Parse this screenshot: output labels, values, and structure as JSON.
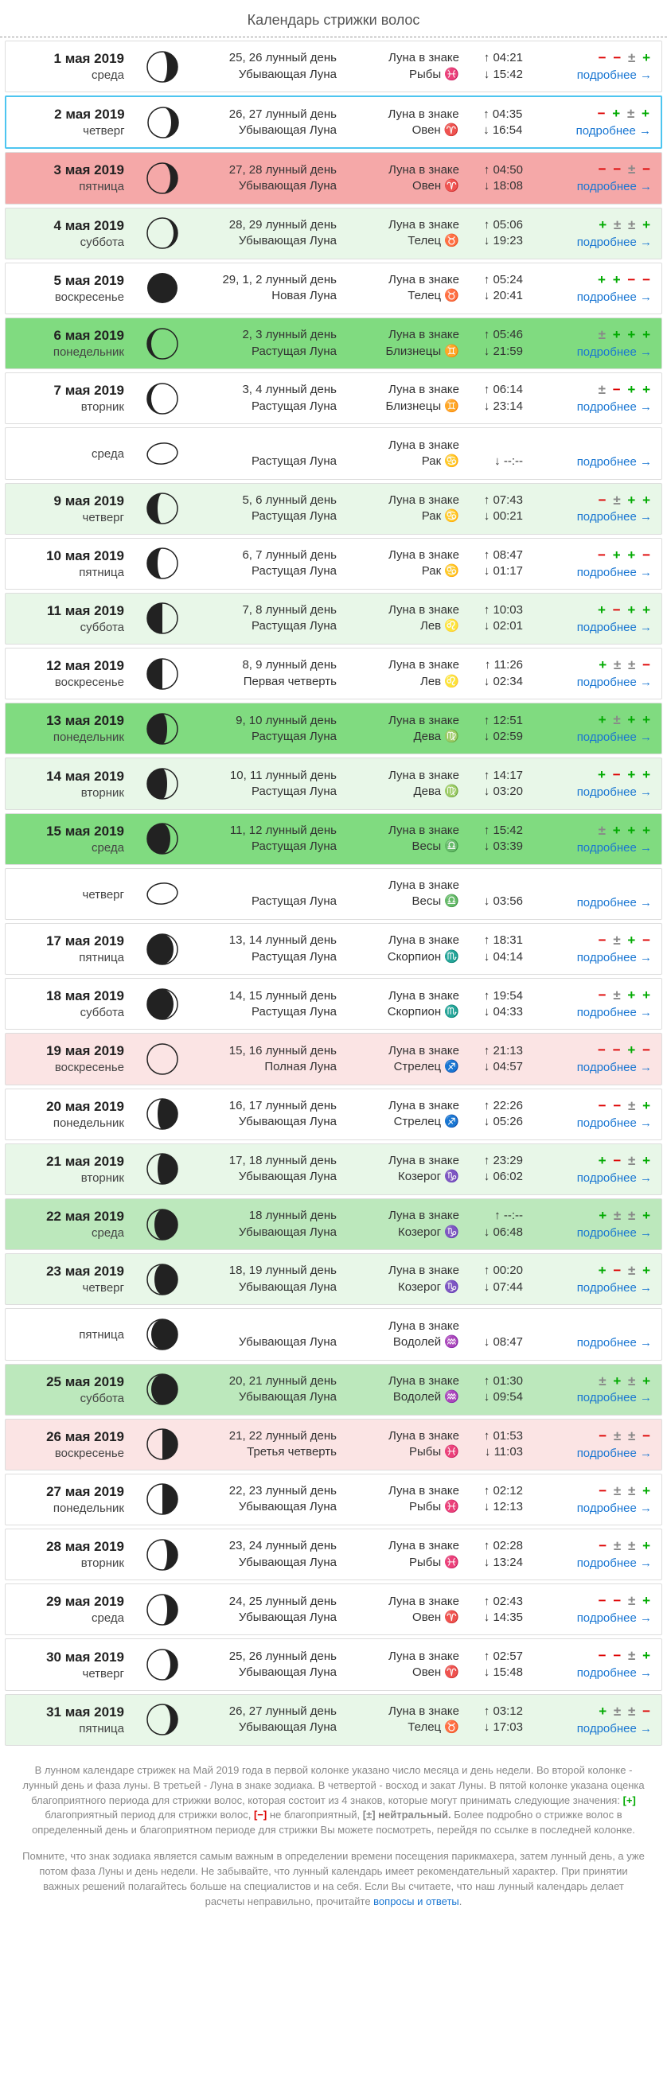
{
  "title": "Календарь стрижки волос",
  "moon_label": "Луна в знаке",
  "details_label": "подробнее →",
  "rows": [
    {
      "date": "1 мая 2019",
      "day": "среда",
      "lunar1": "25, 26 лунный день",
      "lunar2": "Убывающая Луна",
      "sign": "Рыбы ♓",
      "rise": "↑ 04:21",
      "set": "↓ 15:42",
      "rate": [
        "-",
        "-",
        "±",
        "+"
      ],
      "bg": "bg-white",
      "phase": "waning-crescent-3",
      "sel": false
    },
    {
      "date": "2 мая 2019",
      "day": "четверг",
      "lunar1": "26, 27 лунный день",
      "lunar2": "Убывающая Луна",
      "sign": "Овен ♈",
      "rise": "↑ 04:35",
      "set": "↓ 16:54",
      "rate": [
        "-",
        "+",
        "±",
        "+"
      ],
      "bg": "bg-white",
      "phase": "waning-crescent-2",
      "sel": true
    },
    {
      "date": "3 мая 2019",
      "day": "пятница",
      "lunar1": "27, 28 лунный день",
      "lunar2": "Убывающая Луна",
      "sign": "Овен ♈",
      "rise": "↑ 04:50",
      "set": "↓ 18:08",
      "rate": [
        "-",
        "-",
        "±",
        "-"
      ],
      "bg": "bg-red",
      "phase": "waning-crescent-2",
      "sel": false
    },
    {
      "date": "4 мая 2019",
      "day": "суббота",
      "lunar1": "28, 29 лунный день",
      "lunar2": "Убывающая Луна",
      "sign": "Телец ♉",
      "rise": "↑ 05:06",
      "set": "↓ 19:23",
      "rate": [
        "+",
        "±",
        "±",
        "+"
      ],
      "bg": "bg-lgreen",
      "phase": "waning-crescent-1",
      "sel": false
    },
    {
      "date": "5 мая 2019",
      "day": "воскресенье",
      "lunar1": "29, 1, 2 лунный день",
      "lunar2": "Новая Луна",
      "sign": "Телец ♉",
      "rise": "↑ 05:24",
      "set": "↓ 20:41",
      "rate": [
        "+",
        "+",
        "-",
        "-"
      ],
      "bg": "bg-white",
      "phase": "new",
      "sel": false
    },
    {
      "date": "6 мая 2019",
      "day": "понедельник",
      "lunar1": "2, 3 лунный день",
      "lunar2": "Растущая Луна",
      "sign": "Близнецы ♊",
      "rise": "↑ 05:46",
      "set": "↓ 21:59",
      "rate": [
        "±",
        "+",
        "+",
        "+"
      ],
      "bg": "bg-dgreen",
      "phase": "waxing-crescent-1",
      "sel": false
    },
    {
      "date": "7 мая 2019",
      "day": "вторник",
      "lunar1": "3, 4 лунный день",
      "lunar2": "Растущая Луна",
      "sign": "Близнецы ♊",
      "rise": "↑ 06:14",
      "set": "↓ 23:14",
      "rate": [
        "±",
        "-",
        "+",
        "+"
      ],
      "bg": "bg-white",
      "phase": "waxing-crescent-1",
      "sel": false
    },
    {
      "date": "",
      "day": "среда",
      "lunar1": "",
      "lunar2": "Растущая Луна",
      "sign": "Рак ♋",
      "rise": "",
      "set": "↓ --:--",
      "rate": [],
      "bg": "bg-white",
      "phase": "lemon",
      "sel": false
    },
    {
      "date": "9 мая 2019",
      "day": "четверг",
      "lunar1": "5, 6 лунный день",
      "lunar2": "Растущая Луна",
      "sign": "Рак ♋",
      "rise": "↑ 07:43",
      "set": "↓ 00:21",
      "rate": [
        "-",
        "±",
        "+",
        "+"
      ],
      "bg": "bg-lgreen",
      "phase": "waxing-crescent-3",
      "sel": false
    },
    {
      "date": "10 мая 2019",
      "day": "пятница",
      "lunar1": "6, 7 лунный день",
      "lunar2": "Растущая Луна",
      "sign": "Рак ♋",
      "rise": "↑ 08:47",
      "set": "↓ 01:17",
      "rate": [
        "-",
        "+",
        "+",
        "-"
      ],
      "bg": "bg-white",
      "phase": "waxing-crescent-3",
      "sel": false
    },
    {
      "date": "11 мая 2019",
      "day": "суббота",
      "lunar1": "7, 8 лунный день",
      "lunar2": "Растущая Луна",
      "sign": "Лев ♌",
      "rise": "↑ 10:03",
      "set": "↓ 02:01",
      "rate": [
        "+",
        "-",
        "+",
        "+"
      ],
      "bg": "bg-lgreen",
      "phase": "first-quarter",
      "sel": false
    },
    {
      "date": "12 мая 2019",
      "day": "воскресенье",
      "lunar1": "8, 9 лунный день",
      "lunar2": "Первая четверть",
      "sign": "Лев ♌",
      "rise": "↑ 11:26",
      "set": "↓ 02:34",
      "rate": [
        "+",
        "±",
        "±",
        "-"
      ],
      "bg": "bg-white",
      "phase": "first-quarter",
      "sel": false
    },
    {
      "date": "13 мая 2019",
      "day": "понедельник",
      "lunar1": "9, 10 лунный день",
      "lunar2": "Растущая Луна",
      "sign": "Дева ♍",
      "rise": "↑ 12:51",
      "set": "↓ 02:59",
      "rate": [
        "+",
        "±",
        "+",
        "+"
      ],
      "bg": "bg-dgreen",
      "phase": "waxing-gibbous-1",
      "sel": false
    },
    {
      "date": "14 мая 2019",
      "day": "вторник",
      "lunar1": "10, 11 лунный день",
      "lunar2": "Растущая Луна",
      "sign": "Дева ♍",
      "rise": "↑ 14:17",
      "set": "↓ 03:20",
      "rate": [
        "+",
        "-",
        "+",
        "+"
      ],
      "bg": "bg-lgreen",
      "phase": "waxing-gibbous-1",
      "sel": false
    },
    {
      "date": "15 мая 2019",
      "day": "среда",
      "lunar1": "11, 12 лунный день",
      "lunar2": "Растущая Луна",
      "sign": "Весы ♎",
      "rise": "↑ 15:42",
      "set": "↓ 03:39",
      "rate": [
        "±",
        "+",
        "+",
        "+"
      ],
      "bg": "bg-dgreen",
      "phase": "waxing-gibbous-2",
      "sel": false
    },
    {
      "date": "",
      "day": "четверг",
      "lunar1": "",
      "lunar2": "Растущая Луна",
      "sign": "Весы ♎",
      "rise": "",
      "set": "↓ 03:56",
      "rate": [],
      "bg": "bg-white",
      "phase": "lemon",
      "sel": false
    },
    {
      "date": "17 мая 2019",
      "day": "пятница",
      "lunar1": "13, 14 лунный день",
      "lunar2": "Растущая Луна",
      "sign": "Скорпион ♏",
      "rise": "↑ 18:31",
      "set": "↓ 04:14",
      "rate": [
        "-",
        "±",
        "+",
        "-"
      ],
      "bg": "bg-white",
      "phase": "waxing-gibbous-3",
      "sel": false
    },
    {
      "date": "18 мая 2019",
      "day": "суббота",
      "lunar1": "14, 15 лунный день",
      "lunar2": "Растущая Луна",
      "sign": "Скорпион ♏",
      "rise": "↑ 19:54",
      "set": "↓ 04:33",
      "rate": [
        "-",
        "±",
        "+",
        "+"
      ],
      "bg": "bg-white",
      "phase": "waxing-gibbous-3",
      "sel": false
    },
    {
      "date": "19 мая 2019",
      "day": "воскресенье",
      "lunar1": "15, 16 лунный день",
      "lunar2": "Полная Луна",
      "sign": "Стрелец ♐",
      "rise": "↑ 21:13",
      "set": "↓ 04:57",
      "rate": [
        "-",
        "-",
        "+",
        "-"
      ],
      "bg": "bg-pink",
      "phase": "full",
      "sel": false
    },
    {
      "date": "20 мая 2019",
      "day": "понедельник",
      "lunar1": "16, 17 лунный день",
      "lunar2": "Убывающая Луна",
      "sign": "Стрелец ♐",
      "rise": "↑ 22:26",
      "set": "↓ 05:26",
      "rate": [
        "-",
        "-",
        "±",
        "+"
      ],
      "bg": "bg-white",
      "phase": "waning-gibbous-1",
      "sel": false
    },
    {
      "date": "21 мая 2019",
      "day": "вторник",
      "lunar1": "17, 18 лунный день",
      "lunar2": "Убывающая Луна",
      "sign": "Козерог ♑",
      "rise": "↑ 23:29",
      "set": "↓ 06:02",
      "rate": [
        "+",
        "-",
        "±",
        "+"
      ],
      "bg": "bg-lgreen",
      "phase": "waning-gibbous-1",
      "sel": false
    },
    {
      "date": "22 мая 2019",
      "day": "среда",
      "lunar1": "18 лунный день",
      "lunar2": "Убывающая Луна",
      "sign": "Козерог ♑",
      "rise": "↑ --:--",
      "set": "↓ 06:48",
      "rate": [
        "+",
        "±",
        "±",
        "+"
      ],
      "bg": "bg-green",
      "phase": "waning-gibbous-2",
      "sel": false
    },
    {
      "date": "23 мая 2019",
      "day": "четверг",
      "lunar1": "18, 19 лунный день",
      "lunar2": "Убывающая Луна",
      "sign": "Козерог ♑",
      "rise": "↑ 00:20",
      "set": "↓ 07:44",
      "rate": [
        "+",
        "-",
        "±",
        "+"
      ],
      "bg": "bg-lgreen",
      "phase": "waning-gibbous-2",
      "sel": false
    },
    {
      "date": "",
      "day": "пятница",
      "lunar1": "",
      "lunar2": "Убывающая Луна",
      "sign": "Водолей ♒",
      "rise": "",
      "set": "↓ 08:47",
      "rate": [],
      "bg": "bg-white",
      "phase": "waning-gibbous-3",
      "sel": false
    },
    {
      "date": "25 мая 2019",
      "day": "суббота",
      "lunar1": "20, 21 лунный день",
      "lunar2": "Убывающая Луна",
      "sign": "Водолей ♒",
      "rise": "↑ 01:30",
      "set": "↓ 09:54",
      "rate": [
        "±",
        "+",
        "±",
        "+"
      ],
      "bg": "bg-green",
      "phase": "waning-gibbous-3",
      "sel": false
    },
    {
      "date": "26 мая 2019",
      "day": "воскресенье",
      "lunar1": "21, 22 лунный день",
      "lunar2": "Третья четверть",
      "sign": "Рыбы ♓",
      "rise": "↑ 01:53",
      "set": "↓ 11:03",
      "rate": [
        "-",
        "±",
        "±",
        "-"
      ],
      "bg": "bg-pink",
      "phase": "last-quarter",
      "sel": false
    },
    {
      "date": "27 мая 2019",
      "day": "понедельник",
      "lunar1": "22, 23 лунный день",
      "lunar2": "Убывающая Луна",
      "sign": "Рыбы ♓",
      "rise": "↑ 02:12",
      "set": "↓ 12:13",
      "rate": [
        "-",
        "±",
        "±",
        "+"
      ],
      "bg": "bg-white",
      "phase": "last-quarter",
      "sel": false
    },
    {
      "date": "28 мая 2019",
      "day": "вторник",
      "lunar1": "23, 24 лунный день",
      "lunar2": "Убывающая Луна",
      "sign": "Рыбы ♓",
      "rise": "↑ 02:28",
      "set": "↓ 13:24",
      "rate": [
        "-",
        "±",
        "±",
        "+"
      ],
      "bg": "bg-white",
      "phase": "waning-crescent-3",
      "sel": false
    },
    {
      "date": "29 мая 2019",
      "day": "среда",
      "lunar1": "24, 25 лунный день",
      "lunar2": "Убывающая Луна",
      "sign": "Овен ♈",
      "rise": "↑ 02:43",
      "set": "↓ 14:35",
      "rate": [
        "-",
        "-",
        "±",
        "+"
      ],
      "bg": "bg-white",
      "phase": "waning-crescent-3",
      "sel": false
    },
    {
      "date": "30 мая 2019",
      "day": "четверг",
      "lunar1": "25, 26 лунный день",
      "lunar2": "Убывающая Луна",
      "sign": "Овен ♈",
      "rise": "↑ 02:57",
      "set": "↓ 15:48",
      "rate": [
        "-",
        "-",
        "±",
        "+"
      ],
      "bg": "bg-white",
      "phase": "waning-crescent-2",
      "sel": false
    },
    {
      "date": "31 мая 2019",
      "day": "пятница",
      "lunar1": "26, 27 лунный день",
      "lunar2": "Убывающая Луна",
      "sign": "Телец ♉",
      "rise": "↑ 03:12",
      "set": "↓ 17:03",
      "rate": [
        "+",
        "±",
        "±",
        "-"
      ],
      "bg": "bg-lgreen",
      "phase": "waning-crescent-2",
      "sel": false
    }
  ],
  "footer1": "В лунном календаре стрижек на Май 2019 года в первой колонке указано число месяца и день недели. Во второй колонке - лунный день и фаза луны. В третьей - Луна в знаке зодиака. В четвертой - восход и закат Луны. В пятой колонке указана оценка благоприятного периода для стрижки волос, которая состоит из 4 знаков, которые могут принимать следующие значения:",
  "footer1b": " благоприятный период для стрижки волос, ",
  "footer1c": " не благоприятный, ",
  "footer1d": " нейтральный. ",
  "footer1e": "Более подробно о стрижке волос в определенный день и благоприятном периоде для стрижки Вы можете посмотреть, перейдя по ссылке в последней колонке.",
  "footer2": "Помните, что знак зодиака является самым важным в определении времени посещения парикмахера, затем лунный день, а уже потом фаза Луны и день недели. Не забывайте, что лунный календарь имеет рекомендательный характер. При принятии важных решений полагайтесь больше на специалистов и на себя. Если Вы считаете, что наш лунный календарь делает расчеты неправильно, прочитайте ",
  "footer2_link": "вопросы и ответы",
  "rate_plus": "[+]",
  "rate_minus": "[−]",
  "rate_neutral": "[±]"
}
